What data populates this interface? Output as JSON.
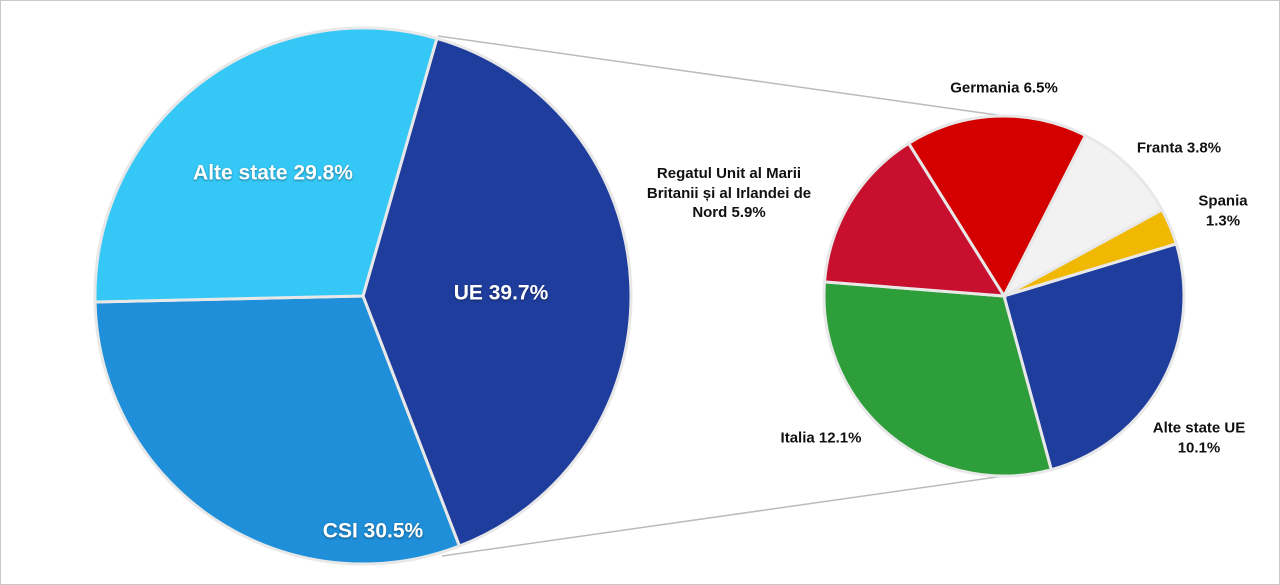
{
  "chart_data": [
    {
      "type": "pie",
      "categories": [
        "UE",
        "CSI",
        "Alte state"
      ],
      "values": [
        39.7,
        30.5,
        29.8
      ],
      "value_labels": [
        "39.7%",
        "30.5%",
        "29.8%"
      ],
      "colors": [
        "#1f3d9c",
        "#1e8fd8",
        "#35c8f6"
      ]
    },
    {
      "type": "pie",
      "categories": [
        "Germania",
        "Franta",
        "Spania",
        "Alte state UE",
        "Italia",
        "Regatul Unit al Marii Britanii și al Irlandei de Nord"
      ],
      "values": [
        6.5,
        3.8,
        1.3,
        10.1,
        12.1,
        5.9
      ],
      "value_labels": [
        "6.5%",
        "3.8%",
        "1.3%",
        "10.1%",
        "12.1%",
        "5.9%"
      ],
      "colors": [
        "#d40000",
        "#f2f2f2",
        "#f0b800",
        "#1f3d9c",
        "#2e9e3a",
        "#c8102e"
      ]
    }
  ]
}
